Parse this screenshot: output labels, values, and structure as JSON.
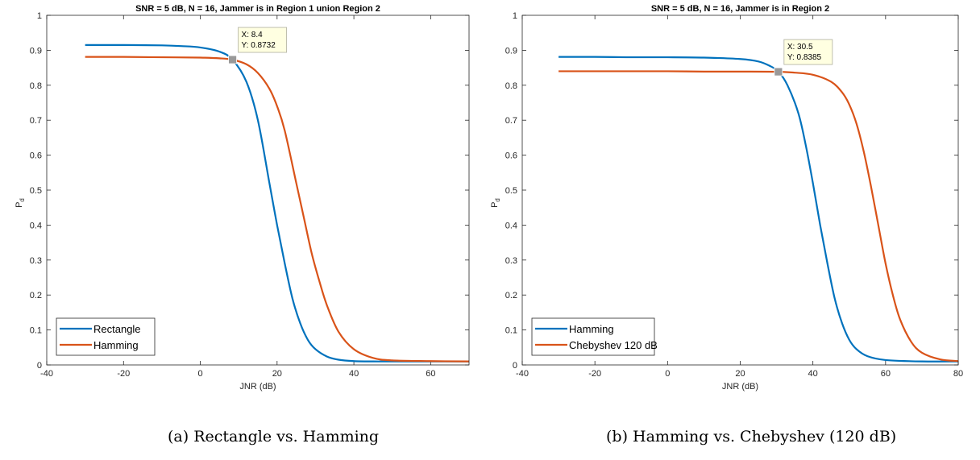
{
  "chart_data": [
    {
      "type": "line",
      "title": "SNR = 5 dB, N = 16, Jammer is in Region 1 union Region 2",
      "xlabel": "JNR (dB)",
      "ylabel": "P",
      "ylabel_sub": "d",
      "xlim": [
        -40,
        70
      ],
      "ylim": [
        0,
        1
      ],
      "xticks": [
        -40,
        -20,
        0,
        20,
        40,
        60
      ],
      "yticks": [
        0,
        0.1,
        0.2,
        0.3,
        0.4,
        0.5,
        0.6,
        0.7,
        0.8,
        0.9,
        1
      ],
      "xtick_labels": [
        "-40",
        "-20",
        "0",
        "20",
        "40",
        "60"
      ],
      "ytick_labels": [
        "0",
        "0.1",
        "0.2",
        "0.3",
        "0.4",
        "0.5",
        "0.6",
        "0.7",
        "0.8",
        "0.9",
        "1"
      ],
      "legend_position": "bottom-left",
      "series": [
        {
          "name": "Rectangle",
          "color": "#0072BD",
          "x": [
            -30,
            -20,
            -10,
            -5,
            0,
            5,
            8.4,
            12,
            15,
            18,
            20,
            22,
            24,
            26,
            28,
            30,
            33,
            36,
            40,
            45,
            50,
            60,
            70
          ],
          "y": [
            0.915,
            0.915,
            0.914,
            0.912,
            0.908,
            0.896,
            0.873,
            0.81,
            0.7,
            0.52,
            0.4,
            0.29,
            0.19,
            0.12,
            0.072,
            0.045,
            0.024,
            0.015,
            0.011,
            0.01,
            0.01,
            0.01,
            0.01
          ]
        },
        {
          "name": "Hamming",
          "color": "#D95319",
          "x": [
            -30,
            -20,
            -10,
            0,
            5,
            8.4,
            12,
            15,
            18,
            20,
            22,
            25,
            27,
            29,
            31,
            33,
            36,
            40,
            45,
            50,
            60,
            70
          ],
          "y": [
            0.881,
            0.881,
            0.88,
            0.879,
            0.877,
            0.873,
            0.86,
            0.835,
            0.79,
            0.74,
            0.67,
            0.52,
            0.42,
            0.32,
            0.24,
            0.17,
            0.095,
            0.045,
            0.02,
            0.013,
            0.011,
            0.01
          ]
        }
      ],
      "datatip": {
        "x": 8.4,
        "y": 0.8732,
        "label_x": "X: 8.4",
        "label_y": "Y: 0.8732"
      }
    },
    {
      "type": "line",
      "title": "SNR = 5 dB, N = 16, Jammer is in Region 2",
      "xlabel": "JNR (dB)",
      "ylabel": "P",
      "ylabel_sub": "d",
      "xlim": [
        -40,
        80
      ],
      "ylim": [
        0,
        1
      ],
      "xticks": [
        -40,
        -20,
        0,
        20,
        40,
        60,
        80
      ],
      "yticks": [
        0,
        0.1,
        0.2,
        0.3,
        0.4,
        0.5,
        0.6,
        0.7,
        0.8,
        0.9,
        1
      ],
      "xtick_labels": [
        "-40",
        "-20",
        "0",
        "20",
        "40",
        "60",
        "80"
      ],
      "ytick_labels": [
        "0",
        "0.1",
        "0.2",
        "0.3",
        "0.4",
        "0.5",
        "0.6",
        "0.7",
        "0.8",
        "0.9",
        "1"
      ],
      "legend_position": "bottom-left",
      "series": [
        {
          "name": "Hamming",
          "color": "#0072BD",
          "x": [
            -30,
            -20,
            -10,
            0,
            10,
            20,
            25,
            28,
            30.5,
            33,
            36,
            38,
            40,
            42,
            44,
            46,
            48,
            50,
            52,
            55,
            60,
            70,
            80
          ],
          "y": [
            0.881,
            0.881,
            0.88,
            0.88,
            0.879,
            0.875,
            0.868,
            0.856,
            0.839,
            0.8,
            0.72,
            0.63,
            0.52,
            0.4,
            0.29,
            0.19,
            0.12,
            0.072,
            0.045,
            0.025,
            0.014,
            0.01,
            0.01
          ]
        },
        {
          "name": "Chebyshev 120 dB",
          "color": "#D95319",
          "x": [
            -30,
            -20,
            -10,
            0,
            10,
            20,
            30.5,
            35,
            40,
            45,
            48,
            50,
            52,
            54,
            56,
            58,
            60,
            62,
            64,
            67,
            70,
            75,
            80
          ],
          "y": [
            0.84,
            0.84,
            0.84,
            0.84,
            0.839,
            0.839,
            0.8385,
            0.836,
            0.83,
            0.81,
            0.78,
            0.745,
            0.69,
            0.61,
            0.51,
            0.4,
            0.29,
            0.2,
            0.13,
            0.067,
            0.035,
            0.016,
            0.011
          ]
        }
      ],
      "datatip": {
        "x": 30.5,
        "y": 0.8385,
        "label_x": "X: 30.5",
        "label_y": "Y: 0.8385"
      }
    }
  ],
  "captions": [
    "(a) Rectangle vs. Hamming",
    "(b) Hamming vs. Chebyshev (120 dB)"
  ]
}
